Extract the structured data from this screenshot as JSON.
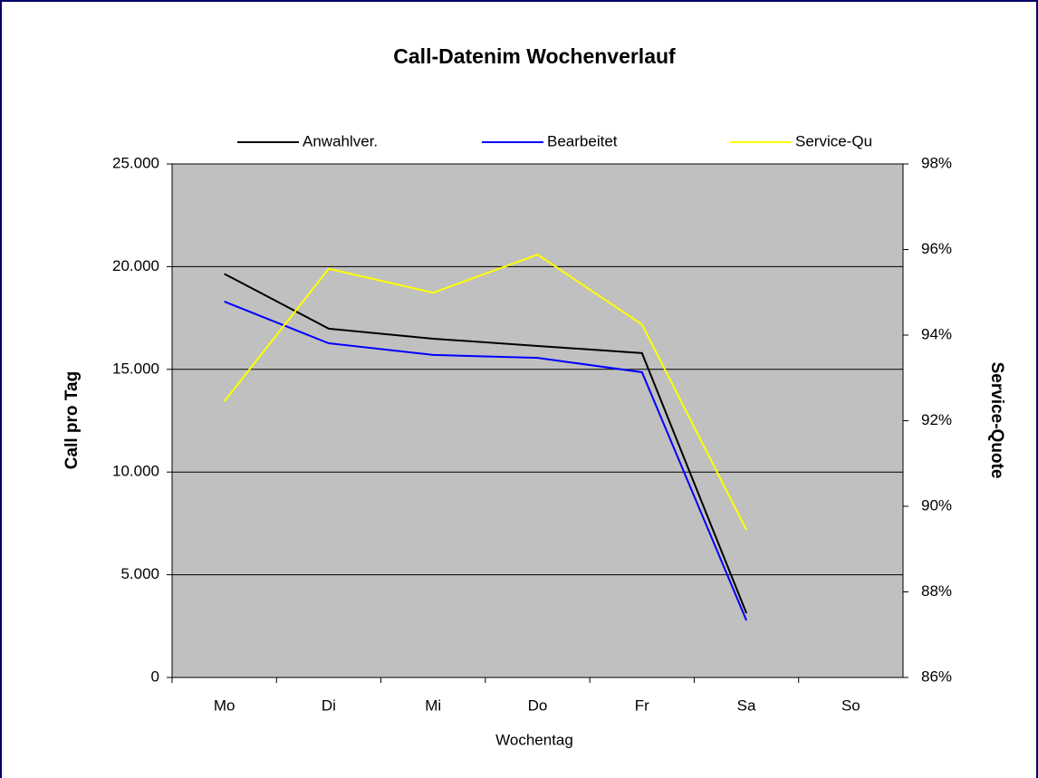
{
  "chart_data": {
    "type": "line",
    "title": "Call-Datenim Wochenverlauf",
    "x_label": "Wochentag",
    "y_label": "Call pro Tag",
    "y2_label": "Service-Quote",
    "categories": [
      "Mo",
      "Di",
      "Mi",
      "Do",
      "Fr",
      "Sa",
      "So"
    ],
    "series": [
      {
        "name": "Anwahlver.",
        "color": "#000000",
        "values": [
          19650,
          16980,
          16490,
          16140,
          15790,
          3130,
          null
        ]
      },
      {
        "name": "Bearbeitet",
        "color": "#0000ff",
        "values": [
          18300,
          16270,
          15700,
          15560,
          14860,
          2780,
          null
        ]
      },
      {
        "name": "Service-Qu",
        "color": "#ffff00",
        "axis": "y2",
        "values": [
          92.45,
          95.55,
          94.99,
          95.88,
          94.25,
          89.45,
          null
        ]
      }
    ],
    "ylim": [
      0,
      25000
    ],
    "yticks": [
      0,
      {
        "value": 5000,
        "label": "5.000"
      },
      {
        "value": 10000,
        "label": "10.000"
      },
      {
        "value": 15000,
        "label": "15.000"
      },
      {
        "value": 20000,
        "label": "20.000"
      },
      {
        "value": 25000,
        "label": "25.000"
      }
    ],
    "y2lim": [
      86,
      98
    ],
    "y2ticks": [
      {
        "value": 86,
        "label": "86%"
      },
      {
        "value": 88,
        "label": "88%"
      },
      {
        "value": 90,
        "label": "90%"
      },
      {
        "value": 92,
        "label": "92%"
      },
      {
        "value": 94,
        "label": "94%"
      },
      {
        "value": 96,
        "label": "96%"
      },
      {
        "value": 98,
        "label": "98%"
      }
    ],
    "grid": true,
    "legend": "top",
    "plot_background": "#c0c0c0"
  }
}
